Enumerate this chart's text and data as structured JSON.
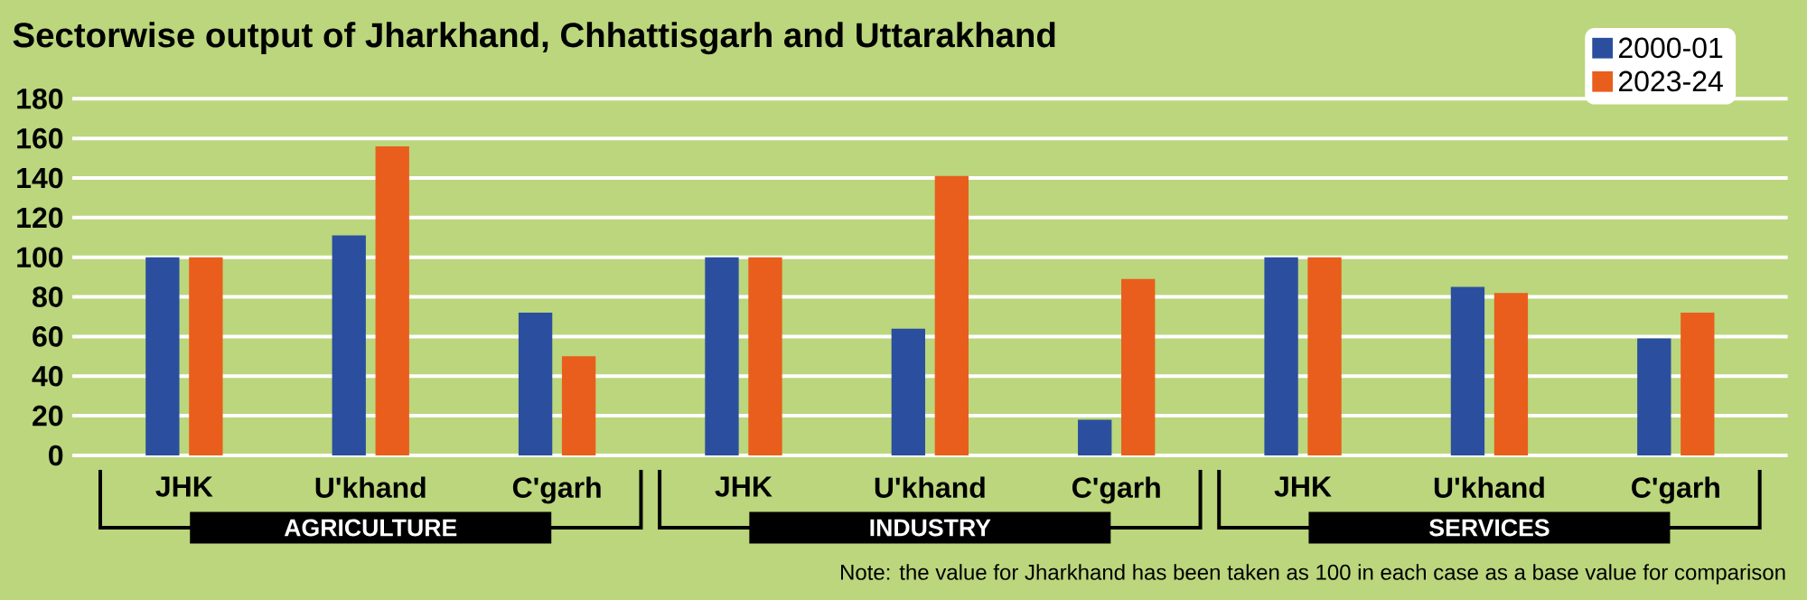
{
  "chart_data": {
    "type": "bar",
    "title": "Sectorwise output of Jharkhand, Chhattisgarh and Uttarakhand",
    "categories": [
      "JHK",
      "U'khand",
      "C'garh",
      "JHK",
      "U'khand",
      "C'garh",
      "JHK",
      "U'khand",
      "C'garh"
    ],
    "series": [
      {
        "name": "2000-01",
        "color": "#2b4f9e",
        "values": [
          100,
          111,
          72,
          100,
          64,
          18,
          100,
          85,
          59
        ]
      },
      {
        "name": "2023-24",
        "color": "#e95e1c",
        "values": [
          100,
          156,
          50,
          100,
          141,
          89,
          100,
          82,
          72
        ]
      }
    ],
    "ylim": [
      0,
      180
    ],
    "yticks": [
      0,
      20,
      40,
      60,
      80,
      100,
      120,
      140,
      160,
      180
    ],
    "grid": "y",
    "legend": "top right",
    "annotations": [
      "AGRICULTURE",
      "INDUSTRY",
      "SERVICES",
      "Note: the value for Jharkhand has been taken as 100 in each case as a base value for comparison"
    ]
  }
}
